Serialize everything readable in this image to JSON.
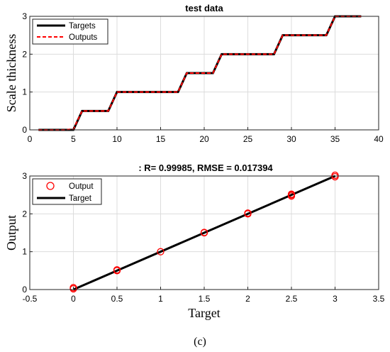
{
  "chart_data": [
    {
      "type": "line",
      "title": "test data",
      "xlabel": "",
      "ylabel": "Scale thickness",
      "xlim": [
        0,
        40
      ],
      "ylim": [
        0,
        3
      ],
      "xticks": [
        0,
        5,
        10,
        15,
        20,
        25,
        30,
        35,
        40
      ],
      "yticks": [
        0,
        1,
        2,
        3
      ],
      "grid": true,
      "legend_position": "top-left",
      "x": [
        1,
        2,
        3,
        4,
        5,
        6,
        7,
        8,
        9,
        10,
        11,
        12,
        13,
        14,
        15,
        16,
        17,
        18,
        19,
        20,
        21,
        22,
        23,
        24,
        25,
        26,
        27,
        28,
        29,
        30,
        31,
        32,
        33,
        34,
        35,
        36,
        37,
        38
      ],
      "series": [
        {
          "name": "Targets",
          "color": "#000000",
          "style": "solid",
          "values": [
            0,
            0,
            0,
            0,
            0,
            0.5,
            0.5,
            0.5,
            0.5,
            1,
            1,
            1,
            1,
            1,
            1,
            1,
            1,
            1.5,
            1.5,
            1.5,
            1.5,
            2,
            2,
            2,
            2,
            2,
            2,
            2,
            2.5,
            2.5,
            2.5,
            2.5,
            2.5,
            2.5,
            3,
            3,
            3,
            3
          ]
        },
        {
          "name": "Outputs",
          "color": "#ff0000",
          "style": "dashed",
          "values": [
            0,
            0,
            0,
            0,
            0.02,
            0.5,
            0.5,
            0.5,
            0.5,
            1,
            1,
            1,
            1,
            1,
            1,
            1,
            1,
            1.5,
            1.5,
            1.5,
            1.5,
            2,
            2,
            2,
            2,
            2,
            2,
            2,
            2.5,
            2.5,
            2.5,
            2.5,
            2.5,
            2.5,
            3,
            3,
            3,
            3
          ]
        }
      ]
    },
    {
      "type": "scatter",
      "title": ": R= 0.99985, RMSE = 0.017394",
      "xlabel": "Target",
      "ylabel": "Output",
      "xlim": [
        -0.5,
        3.5
      ],
      "ylim": [
        0,
        3
      ],
      "xticks": [
        -0.5,
        0,
        0.5,
        1,
        1.5,
        2,
        2.5,
        3,
        3.5
      ],
      "yticks": [
        0,
        1,
        2,
        3
      ],
      "grid": true,
      "legend_position": "top-left",
      "series": [
        {
          "name": "Output",
          "color": "#ff0000",
          "marker": "circle",
          "points": [
            [
              0,
              0.02
            ],
            [
              0,
              0.05
            ],
            [
              0.5,
              0.5
            ],
            [
              0.5,
              0.52
            ],
            [
              1,
              1
            ],
            [
              1.5,
              1.5
            ],
            [
              1.5,
              1.51
            ],
            [
              2,
              2
            ],
            [
              2,
              2.02
            ],
            [
              2.5,
              2.47
            ],
            [
              2.5,
              2.5
            ],
            [
              2.5,
              2.52
            ],
            [
              3,
              2.98
            ],
            [
              3,
              3.02
            ]
          ]
        },
        {
          "name": "Target",
          "color": "#000000",
          "style": "solid",
          "line": [
            [
              0,
              0
            ],
            [
              3,
              3
            ]
          ]
        }
      ]
    }
  ],
  "caption": "(c)"
}
